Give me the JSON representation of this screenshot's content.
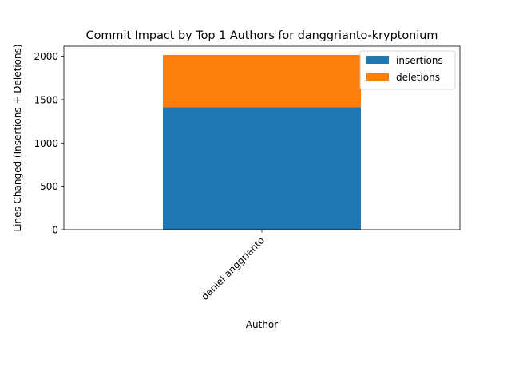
{
  "chart_data": {
    "type": "bar",
    "stacked": true,
    "title": "Commit Impact by Top 1 Authors for danggrianto-kryptonium",
    "xlabel": "Author",
    "ylabel": "Lines Changed (Insertions + Deletions)",
    "categories": [
      "daniel anggrianto"
    ],
    "series": [
      {
        "name": "insertions",
        "color": "#1f77b4",
        "values": [
          1415
        ]
      },
      {
        "name": "deletions",
        "color": "#ff7f0e",
        "values": [
          600
        ]
      }
    ],
    "ylim": [
      0,
      2116
    ],
    "yticks": [
      0,
      500,
      1000,
      1500,
      2000
    ],
    "grid": false,
    "legend_position": "top-right"
  }
}
